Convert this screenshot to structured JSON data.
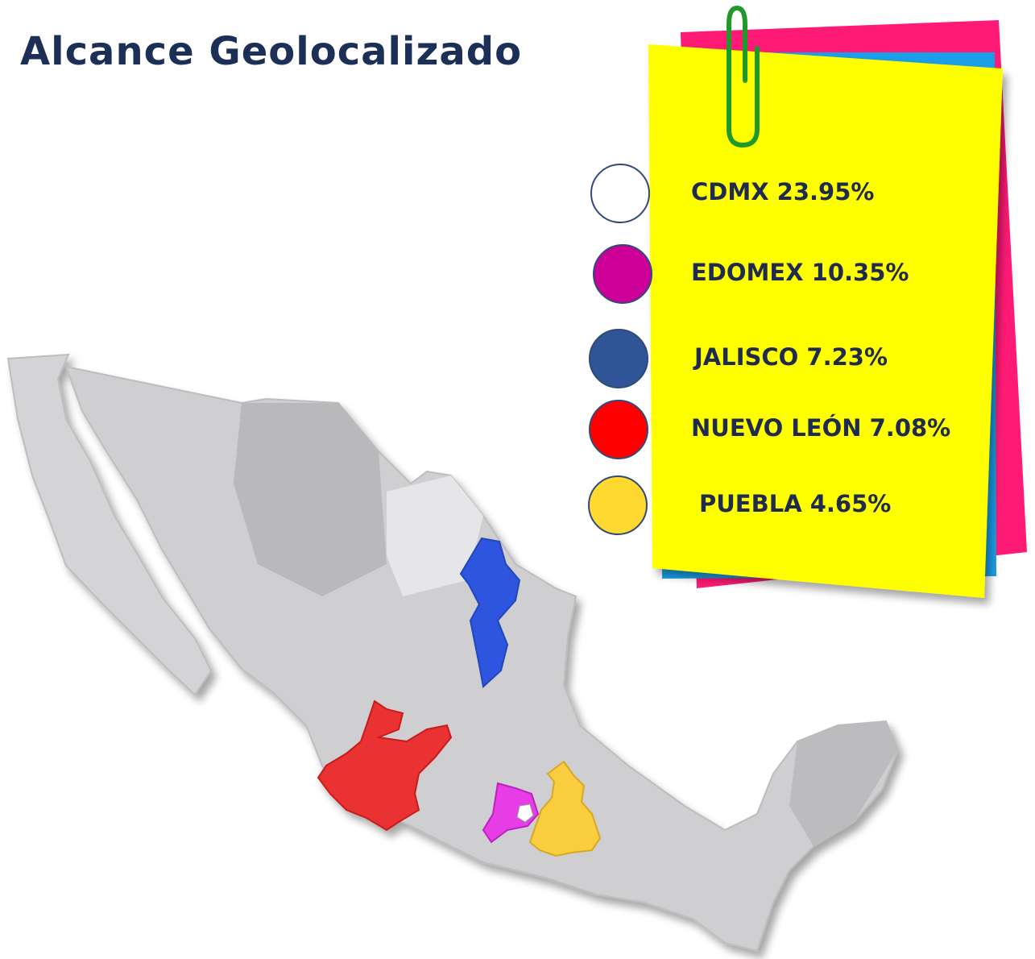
{
  "header": {
    "title": "Alcance Geolocalizado"
  },
  "legend": [
    {
      "label": "CDMX 23.95%",
      "color": "#ffffff"
    },
    {
      "label": "EDOMEX 10.35%",
      "color": "#cc0099"
    },
    {
      "label": "JALISCO 7.23%",
      "color": "#2f5597"
    },
    {
      "label": "NUEVO LEÓN 7.08%",
      "color": "#ff0000"
    },
    {
      "label": "PUEBLA 4.65%",
      "color": "#ffd92f"
    }
  ]
}
